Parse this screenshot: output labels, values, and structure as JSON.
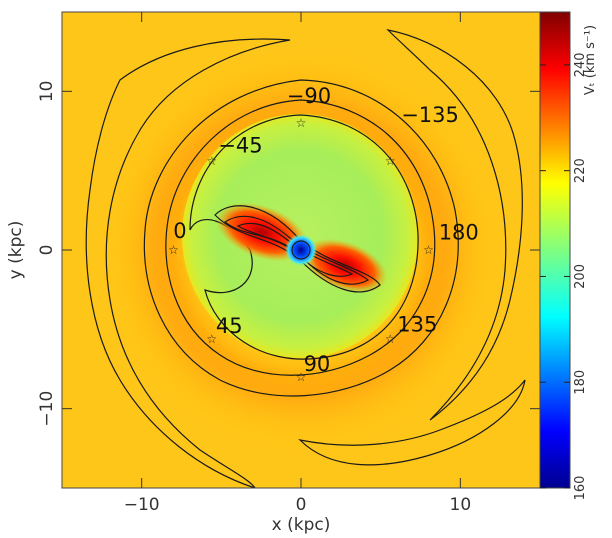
{
  "chart_data": {
    "type": "heatmap",
    "title": "",
    "xlabel": "x (kpc)",
    "ylabel": "y (kpc)",
    "xlim": [
      -15,
      15
    ],
    "ylim": [
      -15,
      15
    ],
    "xticks": [
      -10,
      0,
      10
    ],
    "xtick_labels": [
      "−10",
      "0",
      "10"
    ],
    "yticks": [
      -10,
      0,
      10
    ],
    "ytick_labels": [
      "−10",
      "0",
      "10"
    ],
    "colorbar": {
      "label": "Vₜ (km s⁻¹)",
      "range": [
        160,
        250
      ],
      "ticks": [
        160,
        180,
        200,
        220,
        240
      ],
      "tick_labels": [
        "160",
        "180",
        "200",
        "220",
        "240"
      ],
      "colormap": "jet"
    },
    "field": {
      "background_value": 228,
      "inner_disk": {
        "radius_kpc": 7.2,
        "value": 212
      },
      "bar_peak": {
        "value": 250,
        "orientation_deg": -20,
        "half_length_kpc": 4.5
      },
      "center_min": {
        "value": 165
      }
    },
    "annotations": [
      {
        "text": "−90",
        "x": 0.5,
        "y": 9.7
      },
      {
        "text": "−45",
        "x": -3.8,
        "y": 6.6
      },
      {
        "text": "−135",
        "x": 8.1,
        "y": 8.5
      },
      {
        "text": "0",
        "x": -7.6,
        "y": 1.2
      },
      {
        "text": "180",
        "x": 9.9,
        "y": 1.1
      },
      {
        "text": "45",
        "x": -4.5,
        "y": -4.8
      },
      {
        "text": "135",
        "x": 7.3,
        "y": -4.7
      },
      {
        "text": "90",
        "x": 1.0,
        "y": -7.2
      }
    ],
    "markers": [
      {
        "x": 0.0,
        "y": 8.0
      },
      {
        "x": -5.6,
        "y": 5.6
      },
      {
        "x": 5.6,
        "y": 5.6
      },
      {
        "x": -8.0,
        "y": 0.0
      },
      {
        "x": 8.0,
        "y": 0.0
      },
      {
        "x": -5.6,
        "y": -5.6
      },
      {
        "x": 5.6,
        "y": -5.6
      },
      {
        "x": 0.0,
        "y": -8.0
      }
    ],
    "grid": false
  }
}
